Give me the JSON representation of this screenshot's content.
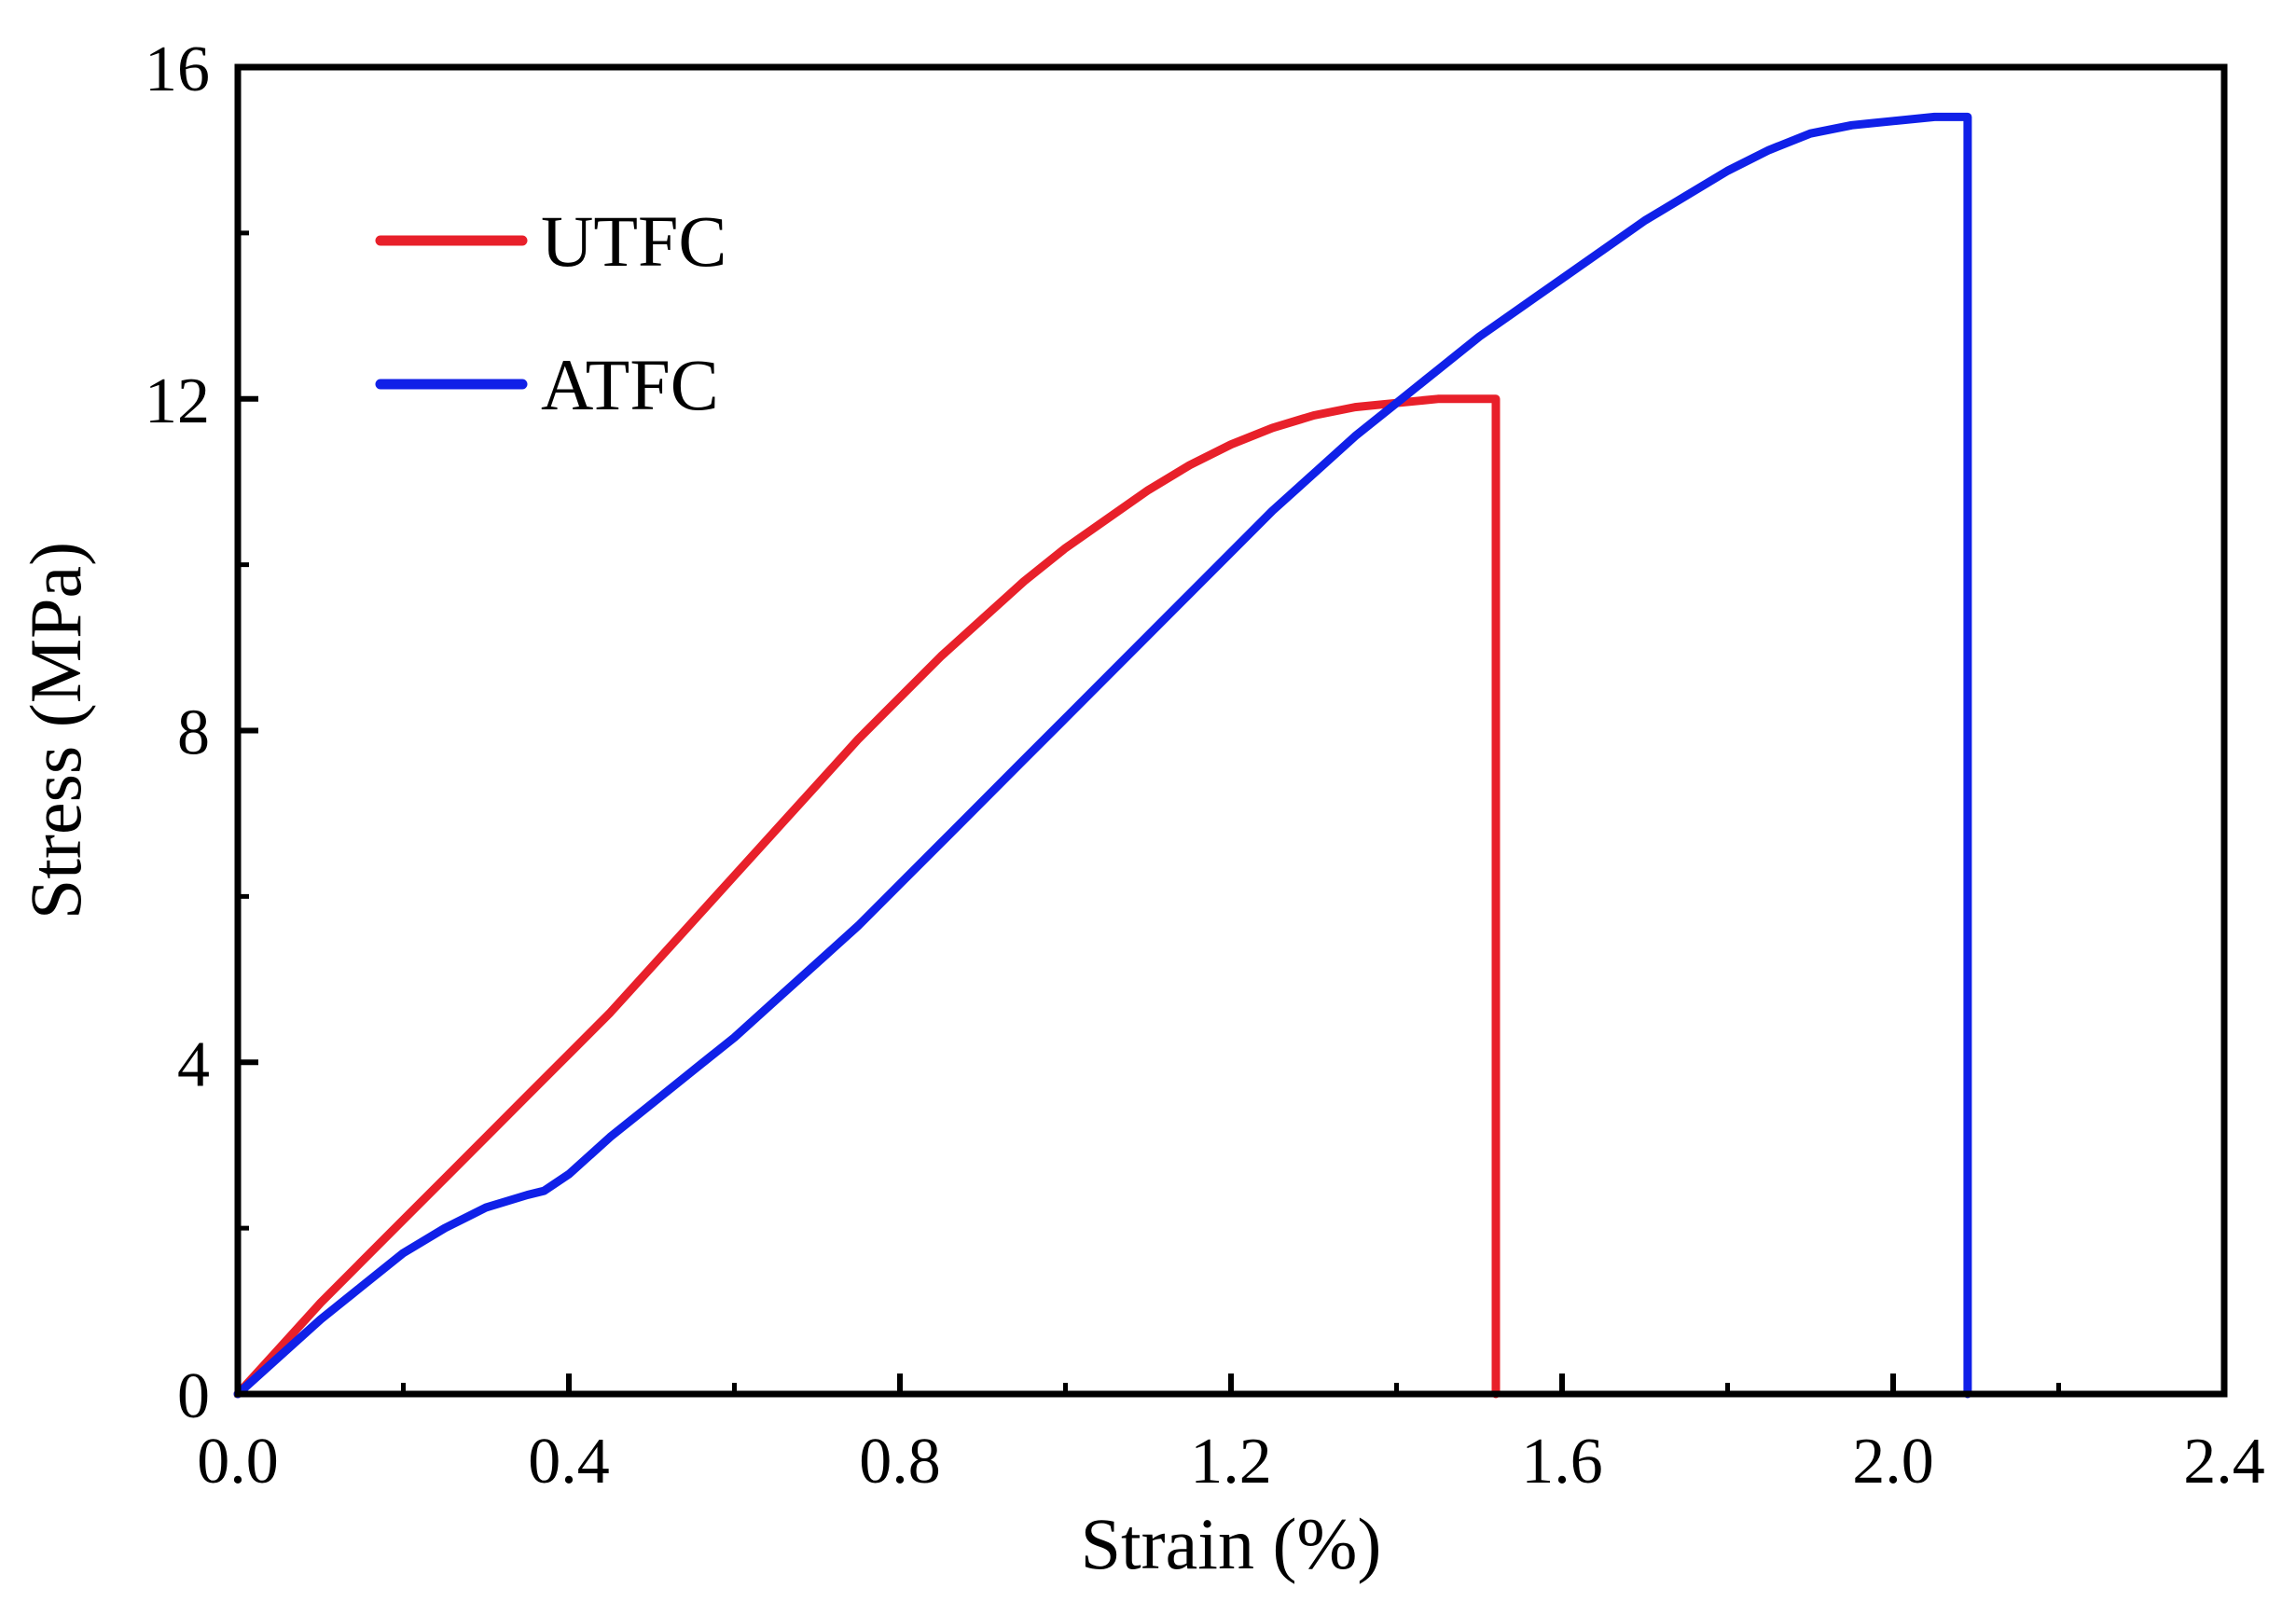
{
  "chart_data": {
    "type": "line",
    "title": "",
    "xlabel": "Strain (%)",
    "ylabel": "Stress (MPa)",
    "xlim": [
      0,
      2.4
    ],
    "ylim": [
      0,
      16
    ],
    "xticks": [
      {
        "value": 0.0,
        "label": "0.0"
      },
      {
        "value": 0.4,
        "label": "0.4"
      },
      {
        "value": 0.8,
        "label": "0.8"
      },
      {
        "value": 1.2,
        "label": "1.2"
      },
      {
        "value": 1.6,
        "label": "1.6"
      },
      {
        "value": 2.0,
        "label": "2.0"
      },
      {
        "value": 2.4,
        "label": "2.4"
      }
    ],
    "yticks": [
      {
        "value": 0,
        "label": "0"
      },
      {
        "value": 4,
        "label": "4"
      },
      {
        "value": 8,
        "label": "8"
      },
      {
        "value": 12,
        "label": "12"
      },
      {
        "value": 16,
        "label": "16"
      }
    ],
    "x_minor_step": 0.2,
    "y_minor_step": 2,
    "grid": false,
    "legend_position": "top-left",
    "series": [
      {
        "name": "UTFC",
        "color": "#e8202a",
        "x": [
          0,
          0.05,
          0.1,
          0.15,
          0.2,
          0.25,
          0.3,
          0.35,
          0.4,
          0.45,
          0.5,
          0.55,
          0.6,
          0.65,
          0.7,
          0.75,
          0.8,
          0.85,
          0.9,
          0.95,
          1.0,
          1.05,
          1.1,
          1.15,
          1.2,
          1.25,
          1.3,
          1.35,
          1.4,
          1.45,
          1.5,
          1.52,
          1.52
        ],
        "y": [
          0,
          0.55,
          1.1,
          1.6,
          2.1,
          2.6,
          3.1,
          3.6,
          4.1,
          4.6,
          5.15,
          5.7,
          6.25,
          6.8,
          7.35,
          7.9,
          8.4,
          8.9,
          9.35,
          9.8,
          10.2,
          10.55,
          10.9,
          11.2,
          11.45,
          11.65,
          11.8,
          11.9,
          11.95,
          12.0,
          12.0,
          12.0,
          0
        ]
      },
      {
        "name": "ATFC",
        "color": "#1020e8",
        "x": [
          0,
          0.05,
          0.1,
          0.15,
          0.2,
          0.25,
          0.3,
          0.35,
          0.37,
          0.4,
          0.45,
          0.5,
          0.55,
          0.6,
          0.65,
          0.7,
          0.75,
          0.8,
          0.85,
          0.9,
          0.95,
          1.0,
          1.05,
          1.1,
          1.15,
          1.2,
          1.25,
          1.3,
          1.35,
          1.4,
          1.45,
          1.5,
          1.55,
          1.6,
          1.65,
          1.7,
          1.75,
          1.8,
          1.85,
          1.9,
          1.95,
          2.0,
          2.05,
          2.09,
          2.09
        ],
        "y": [
          0,
          0.45,
          0.9,
          1.3,
          1.7,
          2.0,
          2.25,
          2.4,
          2.45,
          2.65,
          3.1,
          3.5,
          3.9,
          4.3,
          4.75,
          5.2,
          5.65,
          6.15,
          6.65,
          7.15,
          7.65,
          8.15,
          8.65,
          9.15,
          9.65,
          10.15,
          10.65,
          11.1,
          11.55,
          11.95,
          12.35,
          12.75,
          13.1,
          13.45,
          13.8,
          14.15,
          14.45,
          14.75,
          15.0,
          15.2,
          15.3,
          15.35,
          15.4,
          15.4,
          0
        ]
      }
    ]
  }
}
